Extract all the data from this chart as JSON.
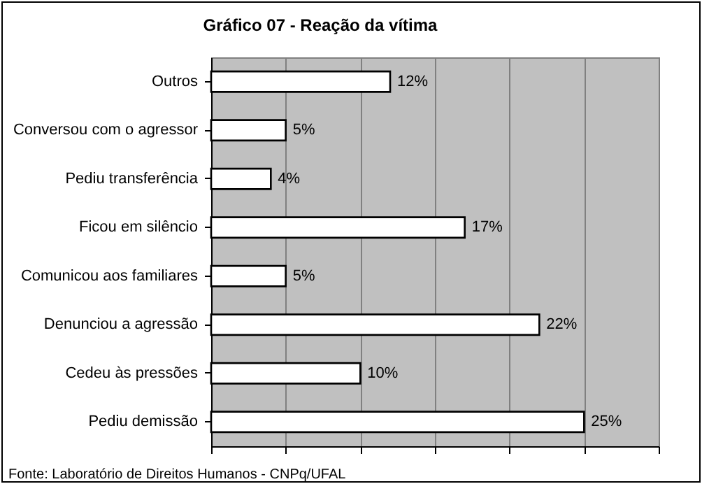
{
  "chart_data": {
    "type": "bar",
    "orientation": "horizontal",
    "title": "Gráfico 07 - Reação da vítima",
    "categories": [
      "Outros",
      "Conversou com o agressor",
      "Pediu transferência",
      "Ficou em silêncio",
      "Comunicou aos familiares",
      "Denunciou a agressão",
      "Cedeu às pressões",
      "Pediu demissão"
    ],
    "values": [
      12,
      5,
      4,
      17,
      5,
      22,
      10,
      25
    ],
    "value_labels": [
      "12%",
      "5%",
      "4%",
      "17%",
      "5%",
      "22%",
      "10%",
      "25%"
    ],
    "color": "#ffffff",
    "xlim": [
      0,
      30
    ],
    "xticks": [
      {
        "value": 0,
        "label": null
      },
      {
        "value": 5,
        "label": null
      },
      {
        "value": 10,
        "label": null
      },
      {
        "value": 15,
        "label": null
      },
      {
        "value": 20,
        "label": null
      },
      {
        "value": 25,
        "label": null
      },
      {
        "value": 30,
        "label": null
      }
    ],
    "grid": "x",
    "tick_labels": "y",
    "annotations": [
      "Fonte: Laboratório de Direitos Humanos - CNPq/UFAL"
    ]
  }
}
